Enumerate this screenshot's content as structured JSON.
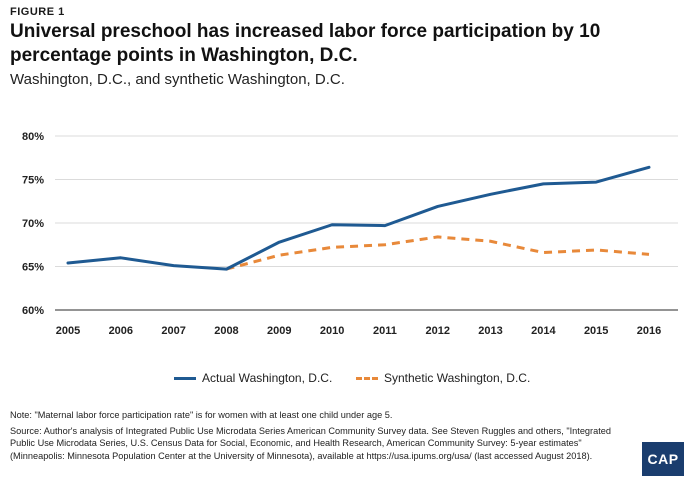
{
  "figure_label": "FIGURE 1",
  "title": "Universal preschool has increased labor force participation by 10 percentage points in Washington, D.C.",
  "subtitle": "Washington, D.C., and synthetic Washington, D.C.",
  "chart_data": {
    "type": "line",
    "x": [
      "2005",
      "2006",
      "2007",
      "2008",
      "2009",
      "2010",
      "2011",
      "2012",
      "2013",
      "2014",
      "2015",
      "2016"
    ],
    "series": [
      {
        "name": "Actual Washington, D.C.",
        "color": "#1f5a92",
        "style": "solid",
        "values": [
          65.4,
          66.0,
          65.1,
          64.7,
          67.8,
          69.8,
          69.7,
          71.9,
          73.3,
          74.5,
          74.7,
          76.4
        ]
      },
      {
        "name": "Synthetic Washington, D.C.",
        "color": "#e8893a",
        "style": "dashed",
        "start_index": 3,
        "values": [
          null,
          null,
          null,
          64.7,
          66.3,
          67.2,
          67.5,
          68.4,
          67.9,
          66.6,
          66.9,
          66.4
        ]
      }
    ],
    "y_ticks": [
      "60%",
      "65%",
      "70%",
      "75%",
      "80%"
    ],
    "ylim": [
      60,
      80
    ],
    "grid": true,
    "legend_position": "bottom-center"
  },
  "legend": {
    "actual": "Actual Washington, D.C.",
    "synthetic": "Synthetic Washington, D.C."
  },
  "notes": {
    "note": "Note: \"Maternal labor force participation rate\" is for women with at least one child under age 5.",
    "source": "Source: Author's analysis of Integrated Public Use Microdata Series American Community Survey data. See Steven Ruggles and others, \"Integrated Public Use Microdata Series, U.S. Census Data for Social, Economic, and Health Research, American Community Survey: 5-year estimates\" (Minneapolis: Minnesota Population Center at the University of Minnesota), available at https://usa.ipums.org/usa/ (last accessed August 2018)."
  },
  "logo": "CAP"
}
